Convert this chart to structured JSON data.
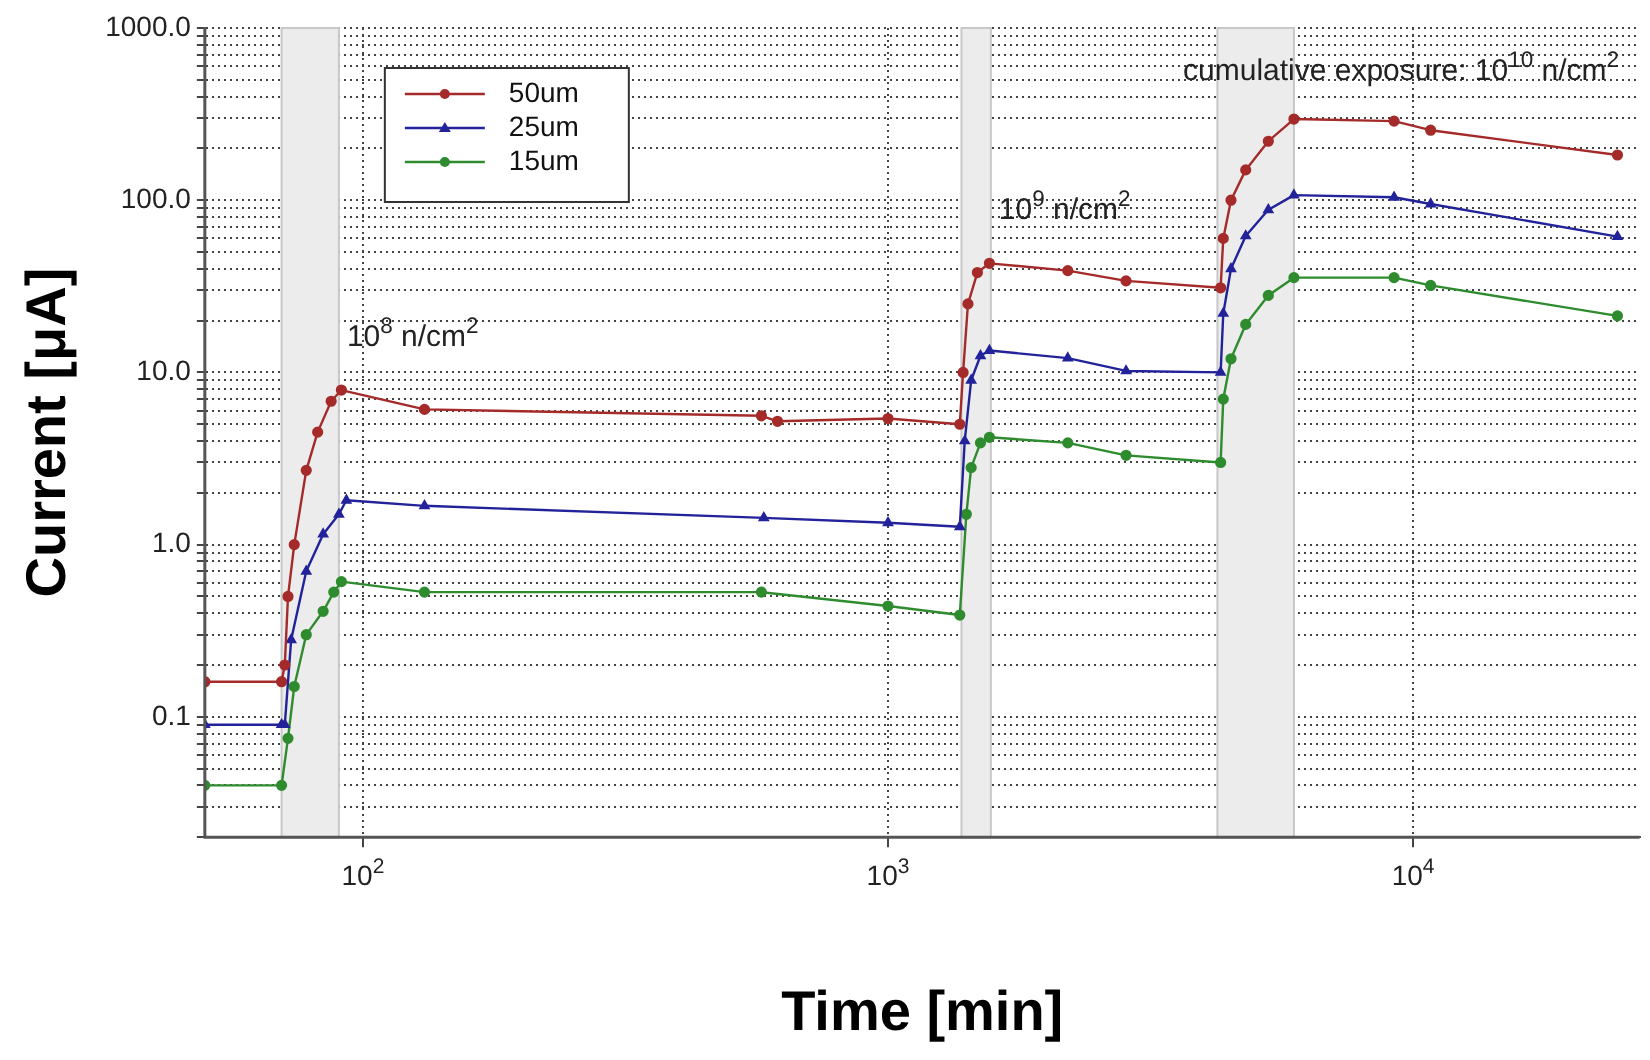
{
  "chart_data": {
    "type": "line",
    "xlabel": "Time [min]",
    "ylabel": "Current [μA]",
    "log": "xy",
    "grid": true,
    "legend": "top left",
    "line_style": "solid",
    "xlim": [
      50,
      27000
    ],
    "ylim": [
      0.02,
      1000
    ],
    "xticks": [
      {
        "value": 100,
        "label": "10$^{2}$"
      },
      {
        "value": 1000,
        "label": "10$^{3}$"
      },
      {
        "value": 10000,
        "label": "10$^{4}$"
      }
    ],
    "yticks": [
      {
        "value": 0.02,
        "label": null
      },
      {
        "value": 0.03,
        "label": null
      },
      {
        "value": 0.04,
        "label": null
      },
      {
        "value": 0.05,
        "label": null
      },
      {
        "value": 0.06,
        "label": null
      },
      {
        "value": 0.07,
        "label": null
      },
      {
        "value": 0.08,
        "label": null
      },
      {
        "value": 0.09,
        "label": null
      },
      {
        "value": 0.1,
        "label": "0.1"
      },
      {
        "value": 0.2,
        "label": null
      },
      {
        "value": 0.3,
        "label": null
      },
      {
        "value": 0.4,
        "label": null
      },
      {
        "value": 0.5,
        "label": null
      },
      {
        "value": 0.6,
        "label": null
      },
      {
        "value": 0.7,
        "label": null
      },
      {
        "value": 0.8,
        "label": null
      },
      {
        "value": 0.9,
        "label": null
      },
      {
        "value": 1,
        "label": "1.0"
      },
      {
        "value": 2,
        "label": null
      },
      {
        "value": 3,
        "label": null
      },
      {
        "value": 4,
        "label": null
      },
      {
        "value": 5,
        "label": null
      },
      {
        "value": 6,
        "label": null
      },
      {
        "value": 7,
        "label": null
      },
      {
        "value": 8,
        "label": null
      },
      {
        "value": 9,
        "label": null
      },
      {
        "value": 10,
        "label": "10.0"
      },
      {
        "value": 20,
        "label": null
      },
      {
        "value": 30,
        "label": null
      },
      {
        "value": 40,
        "label": null
      },
      {
        "value": 50,
        "label": null
      },
      {
        "value": 60,
        "label": null
      },
      {
        "value": 70,
        "label": null
      },
      {
        "value": 80,
        "label": null
      },
      {
        "value": 90,
        "label": null
      },
      {
        "value": 100,
        "label": "100.0"
      },
      {
        "value": 200,
        "label": null
      },
      {
        "value": 300,
        "label": null
      },
      {
        "value": 400,
        "label": null
      },
      {
        "value": 500,
        "label": null
      },
      {
        "value": 600,
        "label": null
      },
      {
        "value": 700,
        "label": null
      },
      {
        "value": 800,
        "label": null
      },
      {
        "value": 900,
        "label": null
      },
      {
        "value": 1000,
        "label": "1000.0"
      }
    ],
    "bands": [
      {
        "axis": "x",
        "from": 70,
        "to": 90,
        "label": "10$^{8}$ n/cm$^{2}$",
        "color": "#ececec"
      },
      {
        "axis": "x",
        "from": 1380,
        "to": 1570,
        "label": "10$^{9}$ n/cm$^{2}$",
        "color": "#ececec"
      },
      {
        "axis": "x",
        "from": 4240,
        "to": 5930,
        "label": "cumulative exposure: 10$^{10}$ n/cm$^{2}$",
        "color": "#ececec"
      }
    ],
    "series": [
      {
        "name": "50um",
        "color": "#a52a2a",
        "marker": "circle",
        "x": [
          50,
          70,
          71,
          72,
          74,
          78,
          82,
          87,
          91,
          131,
          574,
          616,
          1000,
          1370,
          1390,
          1420,
          1480,
          1560,
          2200,
          2840,
          4300,
          4350,
          4500,
          4800,
          5300,
          5930,
          9200,
          10800,
          24500
        ],
        "values": [
          0.16,
          0.16,
          0.2,
          0.5,
          1.0,
          2.7,
          4.5,
          6.8,
          7.9,
          6.1,
          5.6,
          5.2,
          5.4,
          5.0,
          10,
          25,
          38,
          43,
          39,
          34,
          31,
          60,
          100,
          150,
          220,
          296,
          288,
          255,
          183
        ]
      },
      {
        "name": "25um",
        "color": "#22229a",
        "marker": "triangle",
        "x": [
          50,
          70,
          71,
          73,
          78,
          84,
          90,
          93,
          131,
          580,
          1000,
          1370,
          1400,
          1440,
          1500,
          1560,
          2200,
          2840,
          4300,
          4350,
          4500,
          4800,
          5300,
          5930,
          9200,
          10800,
          24500
        ],
        "values": [
          0.09,
          0.09,
          0.09,
          0.28,
          0.7,
          1.15,
          1.5,
          1.81,
          1.68,
          1.43,
          1.34,
          1.27,
          4,
          9,
          12.5,
          13.4,
          12.1,
          10.2,
          10,
          22,
          40,
          62,
          88,
          107,
          104,
          95,
          61.5
        ]
      },
      {
        "name": "15um",
        "color": "#2e8b2e",
        "marker": "circle",
        "x": [
          50,
          70,
          72,
          74,
          78,
          84,
          88,
          91,
          131,
          574,
          1000,
          1370,
          1410,
          1440,
          1500,
          1560,
          2200,
          2840,
          4300,
          4350,
          4500,
          4800,
          5300,
          5930,
          9200,
          10800,
          24500
        ],
        "values": [
          0.04,
          0.04,
          0.075,
          0.15,
          0.3,
          0.41,
          0.53,
          0.61,
          0.53,
          0.53,
          0.44,
          0.39,
          1.5,
          2.8,
          3.9,
          4.2,
          3.9,
          3.3,
          3.0,
          7,
          12,
          19,
          28,
          35.5,
          35.5,
          32,
          21.3
        ]
      }
    ]
  }
}
